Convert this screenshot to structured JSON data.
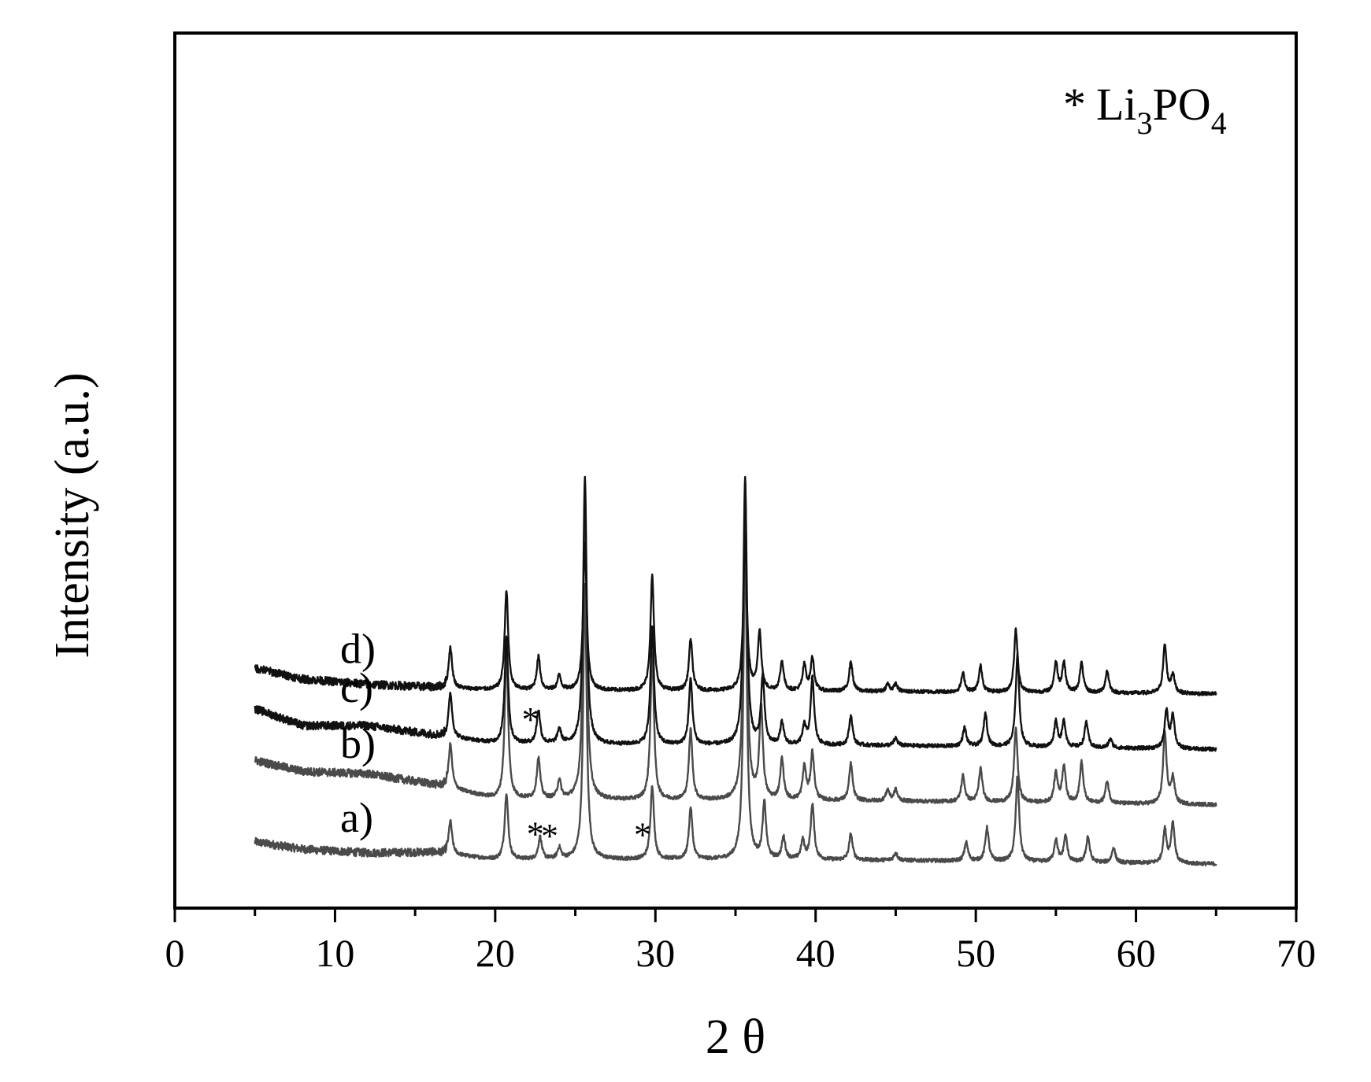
{
  "chart_data": {
    "type": "line",
    "title": "",
    "xlabel": "2 θ",
    "ylabel": "Intensity (a.u.)",
    "xlim": [
      0,
      70
    ],
    "x_ticks": [
      0,
      10,
      20,
      30,
      40,
      50,
      60,
      70
    ],
    "x_tick_labels": [
      "0",
      "10",
      "20",
      "30",
      "40",
      "50",
      "60",
      "70"
    ],
    "y_ticks_shown": false,
    "grid": false,
    "x_range_measured": [
      5,
      65
    ],
    "legend": {
      "placement": "top-right",
      "marker": "*",
      "formula_parts": [
        "Li",
        "3",
        "PO",
        "4"
      ]
    },
    "series": [
      {
        "name": "a)",
        "label": "a)",
        "color": "#4a4a4a",
        "baseline": 0,
        "background": [
          [
            5,
            30
          ],
          [
            8,
            20
          ],
          [
            12,
            15
          ],
          [
            16,
            16
          ],
          [
            20,
            6
          ],
          [
            30,
            6
          ],
          [
            45,
            5
          ],
          [
            65,
            0
          ]
        ],
        "peaks": [
          [
            17.2,
            45
          ],
          [
            20.7,
            90
          ],
          [
            22.8,
            30
          ],
          [
            24.0,
            15
          ],
          [
            25.6,
            370
          ],
          [
            29.8,
            100
          ],
          [
            32.2,
            70
          ],
          [
            35.6,
            420
          ],
          [
            36.8,
            75
          ],
          [
            38.0,
            30
          ],
          [
            39.2,
            25
          ],
          [
            39.8,
            75
          ],
          [
            42.2,
            35
          ],
          [
            45.0,
            10
          ],
          [
            49.4,
            25
          ],
          [
            50.7,
            45
          ],
          [
            52.6,
            115
          ],
          [
            55.0,
            30
          ],
          [
            55.6,
            35
          ],
          [
            57.0,
            35
          ],
          [
            58.6,
            20
          ],
          [
            61.8,
            45
          ],
          [
            62.3,
            55
          ]
        ],
        "impurity_markers": [
          22.5,
          23.4,
          29.2
        ]
      },
      {
        "name": "b)",
        "label": "b)",
        "color": "#4a4a4a",
        "baseline": 80,
        "background": [
          [
            5,
            60
          ],
          [
            8,
            45
          ],
          [
            12,
            42
          ],
          [
            16,
            28
          ],
          [
            20,
            8
          ],
          [
            30,
            6
          ],
          [
            45,
            5
          ],
          [
            65,
            0
          ]
        ],
        "peaks": [
          [
            17.2,
            60
          ],
          [
            20.7,
            200
          ],
          [
            22.7,
            55
          ],
          [
            24.0,
            25
          ],
          [
            25.6,
            420
          ],
          [
            29.8,
            200
          ],
          [
            32.2,
            95
          ],
          [
            35.6,
            430
          ],
          [
            36.6,
            125
          ],
          [
            37.9,
            55
          ],
          [
            39.3,
            45
          ],
          [
            39.8,
            65
          ],
          [
            42.2,
            50
          ],
          [
            44.5,
            15
          ],
          [
            45.0,
            15
          ],
          [
            49.2,
            35
          ],
          [
            50.3,
            45
          ],
          [
            52.5,
            100
          ],
          [
            55.0,
            40
          ],
          [
            55.5,
            50
          ],
          [
            56.6,
            55
          ],
          [
            58.2,
            30
          ],
          [
            61.8,
            95
          ],
          [
            62.3,
            35
          ]
        ]
      },
      {
        "name": "c)",
        "label": "c)",
        "color": "#111111",
        "baseline": 155,
        "background": [
          [
            5,
            55
          ],
          [
            8,
            32
          ],
          [
            12,
            32
          ],
          [
            16,
            20
          ],
          [
            20,
            8
          ],
          [
            30,
            6
          ],
          [
            45,
            5
          ],
          [
            65,
            0
          ]
        ],
        "peaks": [
          [
            17.2,
            60
          ],
          [
            20.7,
            145
          ],
          [
            22.7,
            45
          ],
          [
            24.0,
            20
          ],
          [
            25.6,
            360
          ],
          [
            29.8,
            160
          ],
          [
            32.2,
            90
          ],
          [
            35.6,
            360
          ],
          [
            36.7,
            90
          ],
          [
            37.9,
            30
          ],
          [
            39.3,
            25
          ],
          [
            39.8,
            90
          ],
          [
            42.2,
            40
          ],
          [
            45.0,
            10
          ],
          [
            49.3,
            25
          ],
          [
            50.6,
            45
          ],
          [
            52.6,
            125
          ],
          [
            55.0,
            35
          ],
          [
            55.5,
            35
          ],
          [
            56.9,
            35
          ],
          [
            58.4,
            12
          ],
          [
            61.9,
            50
          ],
          [
            62.3,
            45
          ]
        ],
        "impurity_markers": [
          22.2
        ]
      },
      {
        "name": "d)",
        "label": "d)",
        "color": "#111111",
        "baseline": 230,
        "background": [
          [
            5,
            35
          ],
          [
            8,
            20
          ],
          [
            12,
            13
          ],
          [
            16,
            9
          ],
          [
            20,
            5
          ],
          [
            30,
            4
          ],
          [
            45,
            3
          ],
          [
            65,
            0
          ]
        ],
        "peaks": [
          [
            17.2,
            55
          ],
          [
            20.7,
            135
          ],
          [
            22.7,
            45
          ],
          [
            24.0,
            20
          ],
          [
            25.6,
            200
          ],
          [
            29.8,
            155
          ],
          [
            32.2,
            70
          ],
          [
            35.6,
            210
          ],
          [
            36.5,
            80
          ],
          [
            37.9,
            40
          ],
          [
            39.3,
            35
          ],
          [
            39.8,
            45
          ],
          [
            42.2,
            40
          ],
          [
            44.5,
            10
          ],
          [
            45.0,
            10
          ],
          [
            49.2,
            25
          ],
          [
            50.3,
            35
          ],
          [
            52.5,
            85
          ],
          [
            55.0,
            40
          ],
          [
            55.5,
            40
          ],
          [
            56.6,
            40
          ],
          [
            58.2,
            30
          ],
          [
            61.8,
            65
          ],
          [
            62.3,
            25
          ]
        ]
      }
    ]
  }
}
